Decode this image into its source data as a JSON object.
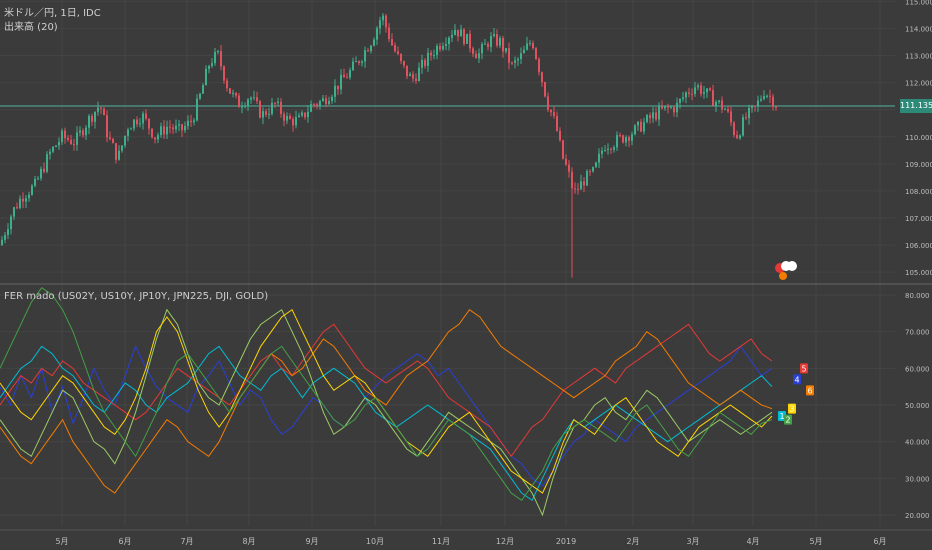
{
  "main_panel": {
    "title": "米ドル／円, 1日, IDC",
    "volume_label": "出来高 (20)",
    "current_price": "111.135"
  },
  "indicator_panel": {
    "title": "FER mado (US02Y, US10Y, JP10Y, JPN225, DJI, GOLD)"
  },
  "colors": {
    "background": "#3b3b3b",
    "up_candle": "#3fae8c",
    "down_candle": "#e0525e",
    "price_line": "#4fb3a0",
    "series": [
      "#2a3fd6",
      "#00bcd4",
      "#e53935",
      "#9ccc65",
      "#f57c00",
      "#ffd600",
      "#43a047"
    ]
  },
  "chart_data": [
    {
      "type": "candlestick",
      "title": "米ドル／円, 1日, IDC",
      "x_ticks": [
        "5月",
        "6月",
        "7月",
        "8月",
        "9月",
        "10月",
        "11月",
        "12月",
        "2019",
        "2月",
        "3月",
        "4月",
        "5月",
        "6月"
      ],
      "y_ticks": [
        "115.000",
        "114.000",
        "113.000",
        "112.000",
        "111.000",
        "110.000",
        "109.000",
        "108.000",
        "107.000",
        "106.000",
        "105.000"
      ],
      "ylim": [
        104.6,
        115.05
      ],
      "current_price": 111.135,
      "close_path": [
        [
          0,
          106.0
        ],
        [
          12,
          107.2
        ],
        [
          22,
          107.8
        ],
        [
          35,
          108.2
        ],
        [
          50,
          109.4
        ],
        [
          62,
          110.0
        ],
        [
          75,
          109.8
        ],
        [
          88,
          110.6
        ],
        [
          100,
          111.2
        ],
        [
          108,
          110.0
        ],
        [
          118,
          109.2
        ],
        [
          128,
          110.4
        ],
        [
          142,
          110.8
        ],
        [
          155,
          110.0
        ],
        [
          168,
          110.4
        ],
        [
          180,
          110.2
        ],
        [
          192,
          110.6
        ],
        [
          200,
          111.5
        ],
        [
          210,
          112.8
        ],
        [
          218,
          113.0
        ],
        [
          228,
          111.8
        ],
        [
          238,
          111.2
        ],
        [
          250,
          111.5
        ],
        [
          262,
          110.8
        ],
        [
          275,
          111.2
        ],
        [
          288,
          110.6
        ],
        [
          300,
          110.6
        ],
        [
          312,
          111.2
        ],
        [
          322,
          111.3
        ],
        [
          335,
          111.8
        ],
        [
          350,
          112.4
        ],
        [
          362,
          113.0
        ],
        [
          372,
          113.6
        ],
        [
          382,
          114.5
        ],
        [
          392,
          113.4
        ],
        [
          402,
          112.6
        ],
        [
          412,
          112.1
        ],
        [
          422,
          112.6
        ],
        [
          432,
          113.1
        ],
        [
          444,
          113.6
        ],
        [
          455,
          114.0
        ],
        [
          466,
          113.6
        ],
        [
          478,
          113.0
        ],
        [
          490,
          113.6
        ],
        [
          500,
          113.5
        ],
        [
          512,
          112.6
        ],
        [
          522,
          113.0
        ],
        [
          532,
          113.6
        ],
        [
          540,
          112.4
        ],
        [
          548,
          111.2
        ],
        [
          556,
          110.4
        ],
        [
          562,
          109.3
        ],
        [
          568,
          108.7
        ],
        [
          574,
          107.9
        ],
        [
          584,
          108.4
        ],
        [
          594,
          108.7
        ],
        [
          604,
          109.7
        ],
        [
          614,
          109.8
        ],
        [
          624,
          110.0
        ],
        [
          634,
          110.2
        ],
        [
          644,
          110.5
        ],
        [
          654,
          110.8
        ],
        [
          664,
          111.0
        ],
        [
          676,
          111.1
        ],
        [
          686,
          111.6
        ],
        [
          696,
          111.9
        ],
        [
          706,
          111.6
        ],
        [
          716,
          111.3
        ],
        [
          726,
          111.0
        ],
        [
          736,
          110.0
        ],
        [
          746,
          110.7
        ],
        [
          756,
          111.1
        ],
        [
          764,
          111.7
        ],
        [
          772,
          111.4
        ],
        [
          778,
          111.1
        ]
      ]
    },
    {
      "type": "line",
      "title": "FER mado (US02Y, US10Y, JP10Y, JPN225, DJI, GOLD)",
      "x_ticks": [
        "5月",
        "6月",
        "7月",
        "8月",
        "9月",
        "10月",
        "11月",
        "12月",
        "2019",
        "2月",
        "3月",
        "4月",
        "5月",
        "6月"
      ],
      "y_ticks": [
        "80.000",
        "70.000",
        "60.000",
        "50.000",
        "40.000",
        "30.000",
        "20.000"
      ],
      "ylim": [
        17,
        83
      ],
      "series": [
        {
          "values": [
            55,
            50,
            58,
            52,
            60,
            48,
            55,
            45,
            52,
            60,
            54,
            50,
            58,
            66,
            60,
            55,
            52,
            50,
            48,
            55,
            58,
            62,
            56,
            50,
            54,
            52,
            46,
            42,
            44,
            48,
            52,
            50,
            46,
            44,
            48,
            52,
            55,
            58,
            60,
            62,
            64,
            62,
            58,
            60,
            56,
            52,
            48,
            44,
            40,
            36,
            34,
            30,
            28,
            32,
            36,
            40,
            42,
            46,
            44,
            42,
            40,
            44,
            46,
            48,
            50,
            52,
            54,
            56,
            58,
            60,
            62,
            66,
            62,
            58,
            60
          ]
        },
        {
          "values": [
            52,
            56,
            60,
            62,
            66,
            64,
            60,
            58,
            54,
            50,
            48,
            52,
            56,
            54,
            50,
            48,
            52,
            54,
            56,
            60,
            64,
            66,
            62,
            58,
            56,
            54,
            58,
            60,
            56,
            52,
            56,
            58,
            60,
            58,
            56,
            52,
            48,
            46,
            44,
            46,
            48,
            50,
            48,
            46,
            44,
            42,
            40,
            38,
            34,
            30,
            26,
            24,
            30,
            36,
            42,
            46,
            44,
            46,
            48,
            50,
            48,
            46,
            44,
            42,
            40,
            42,
            44,
            46,
            48,
            50,
            52,
            54,
            56,
            58,
            55
          ]
        },
        {
          "values": [
            50,
            54,
            58,
            56,
            60,
            58,
            62,
            60,
            56,
            54,
            52,
            50,
            48,
            46,
            48,
            52,
            56,
            60,
            58,
            56,
            54,
            52,
            50,
            54,
            58,
            62,
            64,
            60,
            58,
            62,
            66,
            70,
            72,
            68,
            64,
            60,
            58,
            56,
            58,
            60,
            62,
            60,
            56,
            52,
            50,
            48,
            46,
            44,
            40,
            36,
            40,
            44,
            46,
            50,
            54,
            56,
            58,
            60,
            58,
            56,
            60,
            62,
            64,
            66,
            68,
            70,
            72,
            68,
            64,
            62,
            64,
            66,
            68,
            64,
            62
          ]
        },
        {
          "values": [
            46,
            42,
            38,
            36,
            42,
            48,
            54,
            52,
            46,
            40,
            38,
            34,
            40,
            48,
            58,
            68,
            76,
            72,
            64,
            56,
            52,
            50,
            56,
            62,
            68,
            72,
            74,
            76,
            70,
            64,
            56,
            48,
            42,
            44,
            48,
            52,
            50,
            46,
            42,
            38,
            36,
            40,
            44,
            48,
            46,
            44,
            42,
            40,
            38,
            34,
            30,
            26,
            20,
            30,
            38,
            44,
            46,
            50,
            52,
            48,
            46,
            50,
            54,
            52,
            48,
            44,
            40,
            42,
            44,
            46,
            44,
            42,
            44,
            46,
            48
          ]
        },
        {
          "values": [
            44,
            40,
            36,
            34,
            38,
            42,
            46,
            40,
            36,
            32,
            28,
            26,
            30,
            34,
            38,
            42,
            46,
            44,
            40,
            38,
            36,
            40,
            46,
            52,
            56,
            60,
            64,
            62,
            58,
            60,
            64,
            68,
            66,
            62,
            58,
            54,
            52,
            50,
            54,
            58,
            60,
            62,
            66,
            70,
            72,
            76,
            74,
            70,
            66,
            64,
            62,
            60,
            58,
            56,
            54,
            52,
            54,
            56,
            58,
            62,
            64,
            66,
            70,
            68,
            64,
            60,
            56,
            54,
            52,
            50,
            52,
            54,
            52,
            50,
            49
          ]
        },
        {
          "values": [
            56,
            52,
            48,
            46,
            50,
            54,
            58,
            56,
            52,
            48,
            44,
            42,
            46,
            52,
            60,
            70,
            74,
            70,
            62,
            54,
            48,
            44,
            48,
            54,
            60,
            66,
            70,
            74,
            76,
            70,
            64,
            58,
            54,
            56,
            58,
            56,
            52,
            48,
            44,
            40,
            38,
            36,
            40,
            44,
            46,
            48,
            44,
            40,
            36,
            32,
            30,
            28,
            26,
            32,
            40,
            46,
            44,
            42,
            46,
            50,
            52,
            48,
            44,
            40,
            38,
            36,
            40,
            44,
            46,
            48,
            50,
            48,
            46,
            44,
            47
          ]
        },
        {
          "values": [
            60,
            66,
            72,
            78,
            82,
            80,
            76,
            70,
            62,
            54,
            48,
            44,
            40,
            36,
            42,
            48,
            56,
            62,
            64,
            60,
            56,
            52,
            48,
            52,
            56,
            60,
            64,
            66,
            62,
            58,
            54,
            50,
            46,
            44,
            46,
            50,
            52,
            48,
            44,
            40,
            36,
            38,
            42,
            46,
            44,
            42,
            38,
            34,
            30,
            26,
            24,
            28,
            32,
            38,
            42,
            44,
            46,
            44,
            42,
            40,
            44,
            48,
            50,
            46,
            42,
            38,
            36,
            40,
            44,
            48,
            46,
            44,
            42,
            45,
            46
          ]
        }
      ],
      "end_markers": [
        {
          "label": "5",
          "value": 60
        },
        {
          "label": "4",
          "value": 57
        },
        {
          "label": "6",
          "value": 54
        },
        {
          "label": "3",
          "value": 49
        },
        {
          "label": "1",
          "value": 47
        },
        {
          "label": "2",
          "value": 46
        }
      ]
    }
  ]
}
